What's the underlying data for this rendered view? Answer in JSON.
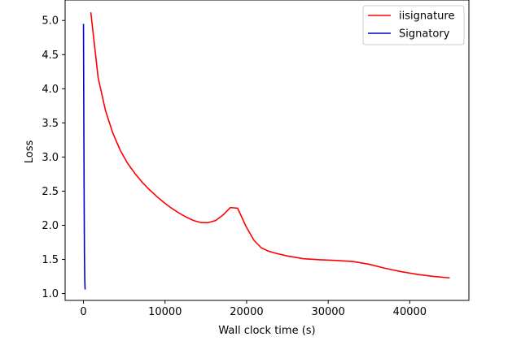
{
  "chart_data": {
    "type": "line",
    "xlabel": "Wall clock time (s)",
    "ylabel": "Loss",
    "xlim": [
      -2250,
      47250
    ],
    "ylim": [
      0.9,
      5.3
    ],
    "xticks": [
      0,
      10000,
      20000,
      30000,
      40000
    ],
    "yticks": [
      1.0,
      1.5,
      2.0,
      2.5,
      3.0,
      3.5,
      4.0,
      4.5,
      5.0
    ],
    "grid": false,
    "legend_position": "top-right",
    "series": [
      {
        "name": "iisignature",
        "color": "#ff0000",
        "x": [
          900,
          1800,
          2700,
          3600,
          4500,
          5400,
          6300,
          7200,
          8100,
          9000,
          9900,
          10800,
          11700,
          12600,
          13500,
          14400,
          15300,
          16200,
          17100,
          18000,
          18900,
          19900,
          20900,
          21800,
          22700,
          23600,
          25000,
          27000,
          29000,
          31000,
          33000,
          35000,
          37000,
          39000,
          41000,
          43000,
          44900
        ],
        "y": [
          5.12,
          4.16,
          3.68,
          3.35,
          3.1,
          2.91,
          2.76,
          2.63,
          2.52,
          2.42,
          2.33,
          2.25,
          2.18,
          2.12,
          2.07,
          2.04,
          2.04,
          2.07,
          2.15,
          2.26,
          2.25,
          1.99,
          1.78,
          1.67,
          1.62,
          1.59,
          1.55,
          1.51,
          1.495,
          1.485,
          1.47,
          1.43,
          1.37,
          1.32,
          1.28,
          1.25,
          1.23
        ]
      },
      {
        "name": "Signatory",
        "color": "#0000cc",
        "x": [
          0,
          40,
          80,
          120,
          160,
          200
        ],
        "y": [
          4.95,
          3.6,
          2.4,
          1.55,
          1.2,
          1.06
        ]
      }
    ]
  }
}
